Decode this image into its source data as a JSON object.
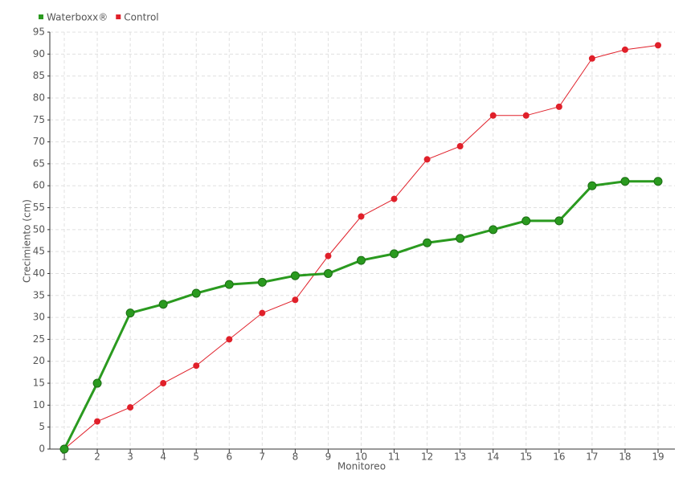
{
  "chart_data": {
    "type": "line",
    "x_label": "Monitoreo",
    "y_label": "Crecimiento (cm)",
    "categories": [
      "1",
      "2",
      "3",
      "4",
      "5",
      "6",
      "7",
      "8",
      "9",
      "10",
      "11",
      "12",
      "13",
      "14",
      "15",
      "16",
      "17",
      "18",
      "19"
    ],
    "series": [
      {
        "name": "Waterboxx®",
        "color": "#2a9a1f",
        "values": [
          0,
          15,
          31,
          33,
          35.5,
          37.5,
          38,
          39.5,
          40,
          43,
          44.5,
          47,
          48,
          50,
          52,
          52,
          60,
          61,
          61
        ]
      },
      {
        "name": "Control",
        "color": "#e0202a",
        "values": [
          0,
          6.3,
          9.5,
          15,
          19,
          25,
          31,
          34,
          44,
          53,
          57,
          66,
          69,
          76,
          76,
          78,
          89,
          91,
          92
        ]
      }
    ],
    "ylim": [
      0,
      95
    ],
    "yticks": [
      0,
      5,
      10,
      15,
      20,
      25,
      30,
      35,
      40,
      45,
      50,
      55,
      60,
      65,
      70,
      75,
      80,
      85,
      90,
      95
    ],
    "grid": true,
    "legend": "top-left"
  }
}
